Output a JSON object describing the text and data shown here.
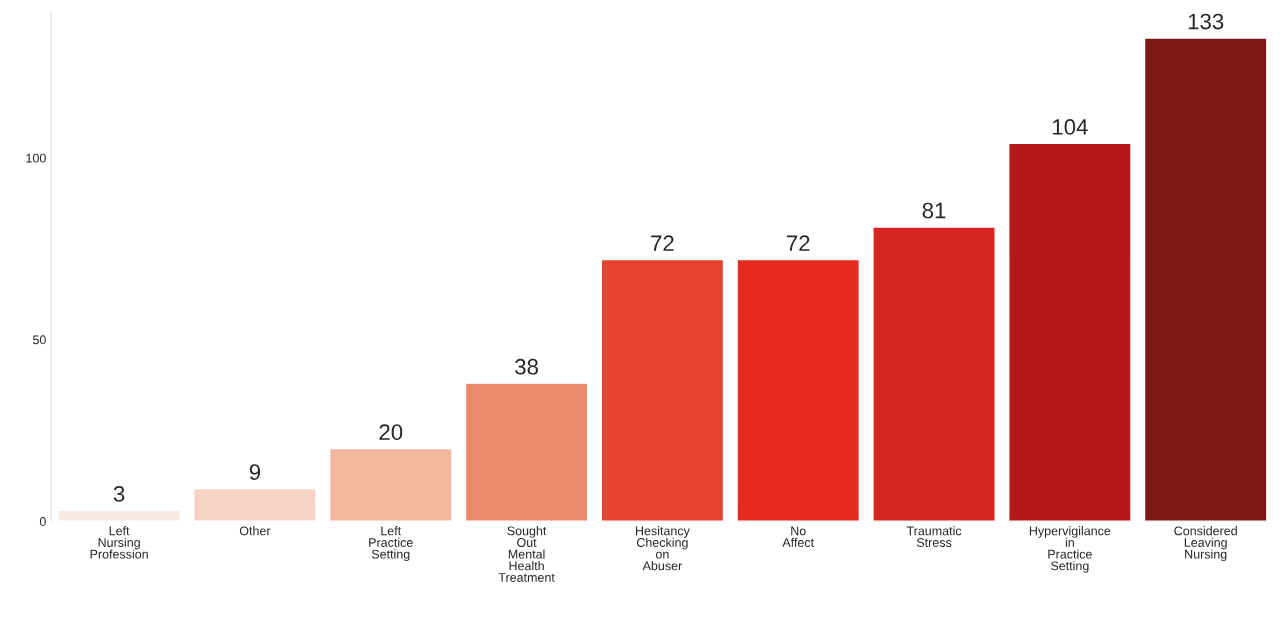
{
  "chart_data": {
    "type": "bar",
    "categories": [
      "Left\nNursing\nProfession",
      "Other",
      "Left\nPractice\nSetting",
      "Sought\nOut\nMental\nHealth\nTreatment",
      "Hesitancy\nChecking\non\nAbuser",
      "No\nAffect",
      "Traumatic\nStress",
      "Hypervigilance\nin\nPractice\nSetting",
      "Considered\nLeaving\nNursing"
    ],
    "values": [
      3,
      9,
      20,
      38,
      72,
      72,
      81,
      104,
      133
    ],
    "colors": [
      "#fbeae3",
      "#f7d3c5",
      "#f3b79e",
      "#ec8a6c",
      "#e9412f",
      "#e52b20",
      "#d72420",
      "#b5191b",
      "#7b1a14"
    ],
    "ylim": [
      0,
      140
    ],
    "yticks": [
      0,
      50,
      100
    ],
    "data_labels": true,
    "grid": false
  }
}
